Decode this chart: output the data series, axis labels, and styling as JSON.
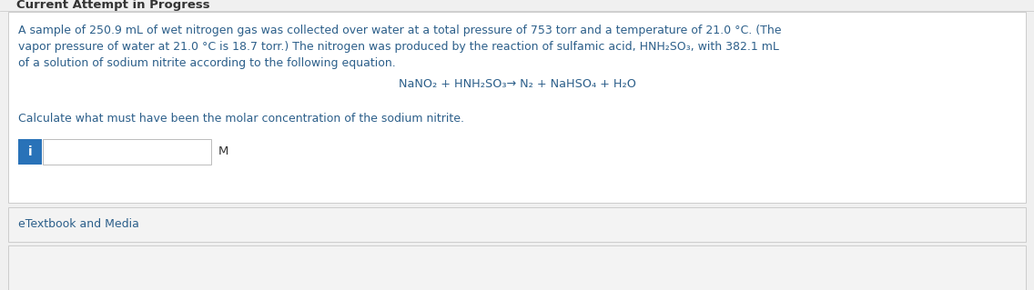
{
  "bg_color": "#f0f0f0",
  "outer_bg": "#e8e8e8",
  "body_text_line1": "A sample of 250.9 mL of wet nitrogen gas was collected over water at a total pressure of 753 torr and a temperature of 21.0 °C. (The",
  "body_text_line2": "vapor pressure of water at 21.0 °C is 18.7 torr.) The nitrogen was produced by the reaction of sulfamic acid, HNH₂SO₃, with 382.1 mL",
  "body_text_line3": "of a solution of sodium nitrite according to the following equation.",
  "equation": "NaNO₂ + HNH₂SO₃→ N₂ + NaHSO₄ + H₂O",
  "question_text": "Calculate what must have been the molar concentration of the sodium nitrite.",
  "unit_label": "M",
  "etextbook_text": "eTextbook and Media",
  "text_color": "#2c5f8a",
  "button_color": "#2972b8",
  "button_text": "i",
  "input_box_color": "#ffffff",
  "input_border_color": "#bbbbbb",
  "etextbook_bg": "#f3f3f3",
  "etextbook_border": "#cccccc",
  "main_box_border": "#cccccc",
  "main_box_bg": "#ffffff",
  "header_partial_text": "Current Attempt in Progress",
  "header_text_color": "#333333"
}
